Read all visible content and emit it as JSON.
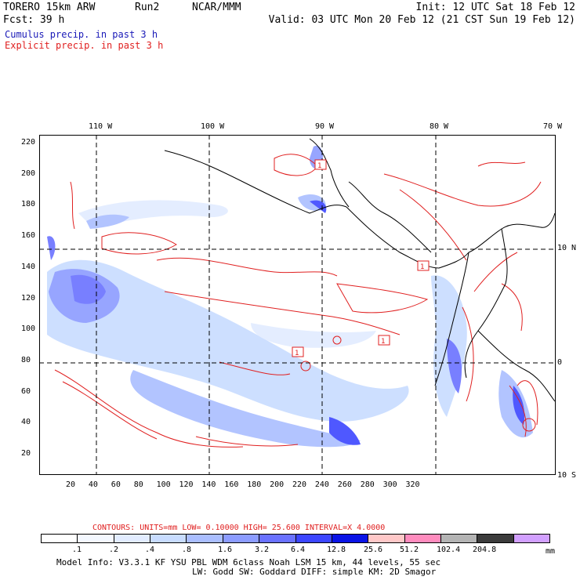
{
  "header": {
    "model": "TORERO  15km ARW",
    "run": "Run2",
    "org": "NCAR/MMM",
    "init": "Init: 12 UTC Sat 18 Feb 12",
    "fcst": "Fcst:   39 h",
    "valid": "Valid: 03 UTC Mon 20 Feb 12 (21 CST Sun 19 Feb 12)",
    "cumulus": "Cumulus precip. in past 3 h",
    "explicit": "Explicit precip. in past 3 h"
  },
  "axes": {
    "top_lon": [
      "110 W",
      "100 W",
      "90 W",
      "80 W",
      "70 W"
    ],
    "right_lat": [
      "10 N",
      "0",
      "10 S"
    ],
    "y_ticks": [
      "220",
      "200",
      "180",
      "160",
      "140",
      "120",
      "100",
      "80",
      "60",
      "40",
      "20"
    ],
    "x_ticks": [
      "20",
      "40",
      "60",
      "80",
      "100",
      "120",
      "140",
      "160",
      "180",
      "200",
      "220",
      "240",
      "260",
      "280",
      "300",
      "320"
    ]
  },
  "legend": {
    "contours": "CONTOURS:  UNITS=mm  LOW= 0.10000      HIGH=  25.600      INTERVAL=X  4.0000",
    "labels": [
      ".1",
      ".2",
      ".4",
      ".8",
      "1.6",
      "3.2",
      "6.4",
      "12.8",
      "25.6",
      "51.2",
      "102.4",
      "204.8"
    ],
    "units": "mm",
    "colors": [
      "#ffffff",
      "#f4f8ff",
      "#e2ecff",
      "#c8dcff",
      "#aabeff",
      "#8c9cff",
      "#6a72ff",
      "#3c46ff",
      "#0a14e6",
      "#ffc8c8",
      "#ff8cbe",
      "#b4b4b4",
      "#3c3c3c",
      "#d2a0ff"
    ]
  },
  "footer": {
    "line1": "Model Info: V3.3.1    KF     YSU PBL   WDM 6class  Noah LSM  15 km,   44 levels,    55 sec",
    "line2": "LW: Godd SW: Goddard DIFF: simple KM: 2D Smagor"
  },
  "contour_labels": [
    "1",
    "1",
    "1",
    "1"
  ]
}
